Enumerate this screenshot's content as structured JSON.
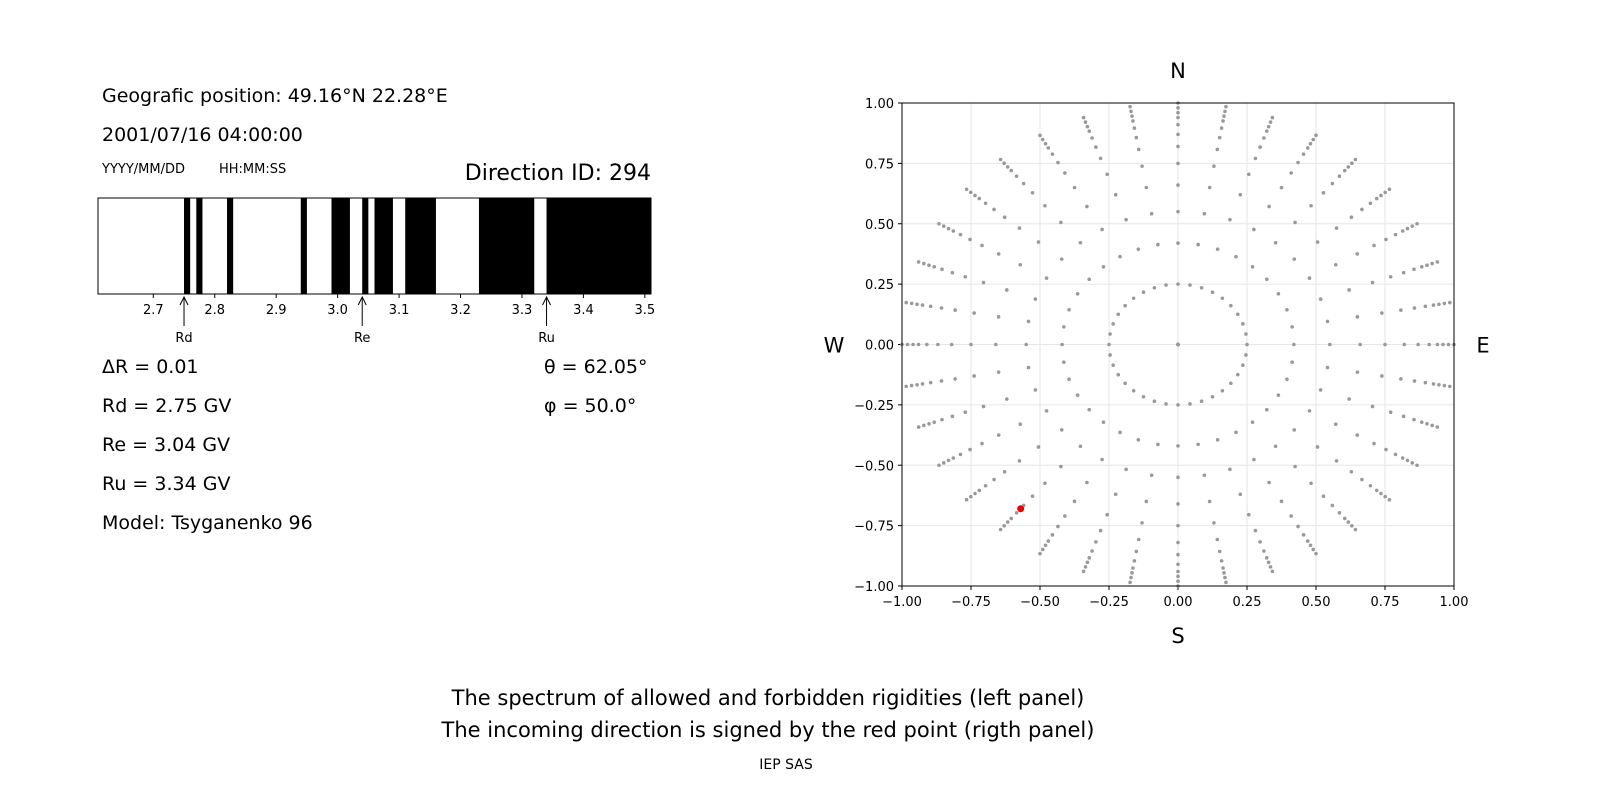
{
  "header": {
    "position": "Geografic position: 49.16°N 22.28°E",
    "datetime": "2001/07/16 04:00:00",
    "date_format": "YYYY/MM/DD",
    "time_format": "HH:MM:SS",
    "direction": "Direction ID: 294"
  },
  "parameters": {
    "delta_r": "ΔR = 0.01",
    "rd": "Rd = 2.75 GV",
    "re": "Re = 3.04 GV",
    "ru": "Ru = 3.34 GV",
    "model": "Model: Tsyganenko 96",
    "theta": "θ = 62.05°",
    "phi": "φ = 50.0°"
  },
  "chart_data": [
    {
      "type": "spectrum",
      "color": "#000000",
      "forbidden": [
        [
          2.75,
          2.76
        ],
        [
          2.77,
          2.78
        ],
        [
          2.82,
          2.83
        ],
        [
          2.94,
          2.95
        ],
        [
          2.99,
          3.02
        ],
        [
          3.04,
          3.05
        ],
        [
          3.06,
          3.09
        ],
        [
          3.11,
          3.16
        ],
        [
          3.23,
          3.32
        ],
        [
          3.34,
          3.51
        ]
      ],
      "xlim": [
        2.61,
        3.51
      ],
      "xticks": [
        2.7,
        2.8,
        2.9,
        {
          "value": 3,
          "label": "3.0"
        },
        3.1,
        3.2,
        3.3,
        3.4,
        3.5
      ],
      "markers": [
        {
          "label": "Rd",
          "value": 2.75
        },
        {
          "label": "Re",
          "value": 3.04
        },
        {
          "label": "Ru",
          "value": 3.34
        }
      ]
    },
    {
      "type": "polar-scatter",
      "color": "#999999",
      "labels": {
        "north": "N",
        "south": "S",
        "east": "E",
        "west": "W"
      },
      "directions_deg": [
        0,
        10,
        20,
        30,
        40,
        50,
        60,
        70,
        80,
        90,
        100,
        110,
        120,
        130,
        140,
        150,
        160,
        170,
        180,
        190,
        200,
        210,
        220,
        230,
        240,
        250,
        260,
        270,
        280,
        290,
        300,
        310,
        320,
        330,
        340,
        350
      ],
      "radii": [
        0,
        0.25,
        0.42,
        0.55,
        0.66,
        0.75,
        0.82,
        0.87,
        0.91,
        0.94,
        0.96,
        0.98,
        1.0
      ],
      "highlight": {
        "x": -0.57,
        "y": -0.68,
        "color": "#ee0000"
      },
      "xlim": [
        -1,
        1
      ],
      "ylim": [
        -1,
        1
      ],
      "xticks": [
        {
          "value": -1,
          "label": "−1.00"
        },
        {
          "value": -0.75,
          "label": "−0.75"
        },
        {
          "value": -0.5,
          "label": "−0.50"
        },
        {
          "value": -0.25,
          "label": "−0.25"
        },
        {
          "value": 0,
          "label": "0.00"
        },
        {
          "value": 0.25,
          "label": "0.25"
        },
        {
          "value": 0.5,
          "label": "0.50"
        },
        {
          "value": 0.75,
          "label": "0.75"
        },
        {
          "value": 1,
          "label": "1.00"
        }
      ],
      "yticks": [
        {
          "value": -1,
          "label": "−1.00"
        },
        {
          "value": -0.75,
          "label": "−0.75"
        },
        {
          "value": -0.5,
          "label": "−0.50"
        },
        {
          "value": -0.25,
          "label": "−0.25"
        },
        {
          "value": 0,
          "label": "0.00"
        },
        {
          "value": 0.25,
          "label": "0.25"
        },
        {
          "value": 0.5,
          "label": "0.50"
        },
        {
          "value": 0.75,
          "label": "0.75"
        },
        {
          "value": 1,
          "label": "1.00"
        }
      ],
      "grid": true
    }
  ],
  "caption": [
    "The spectrum of allowed and forbidden rigidities (left panel)",
    "The incoming direction is signed by the red point (rigth panel)"
  ],
  "footer": "IEP SAS"
}
